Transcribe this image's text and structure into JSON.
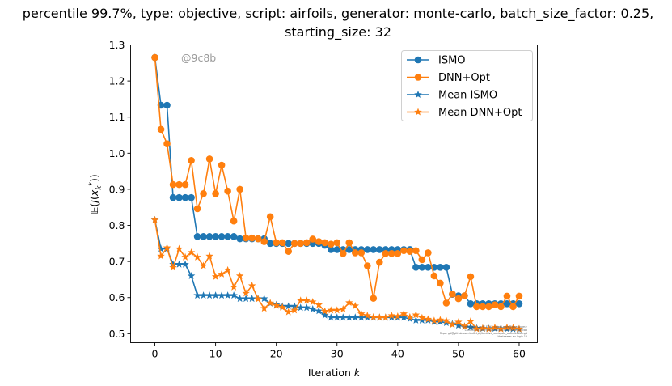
{
  "chart_data": {
    "type": "line",
    "title_line1": "percentile 99.7%, type: objective, script: airfoils, generator: monte-carlo, batch_size_factor: 0.25,",
    "title_line2": "starting_size: 32",
    "xlabel_text": "Iteration ",
    "xlabel_var": "k",
    "ylabel": "𝔼(J(x_k*))",
    "watermark": "@9c8b",
    "footnote_lines": [
      "By Kjetil Olsen Lye @ ETHZ <kjetil.o.lye@gmail.com>",
      "Commit: 0c8a8f94d4e1a2b3c5f1e0d3f1c8b9c8b",
      "Repo: git@github.com:kjetil-lye/iterative_surrogate_optimization.git",
      "Hostname: eu-login-15"
    ],
    "xlim": [
      -4,
      63
    ],
    "ylim": [
      0.475,
      1.3
    ],
    "xticks": [
      0,
      10,
      20,
      30,
      40,
      50,
      60
    ],
    "yticks": [
      0.5,
      0.6,
      0.7,
      0.8,
      0.9,
      1.0,
      1.1,
      1.2,
      1.3
    ],
    "ytick_labels": [
      "0.5",
      "0.6",
      "0.7",
      "0.8",
      "0.9",
      "1.0",
      "1.1",
      "1.2",
      "1.3"
    ],
    "grid": false,
    "legend_position": "top-right",
    "x": [
      0,
      1,
      2,
      3,
      4,
      5,
      6,
      7,
      8,
      9,
      10,
      11,
      12,
      13,
      14,
      15,
      16,
      17,
      18,
      19,
      20,
      21,
      22,
      23,
      24,
      25,
      26,
      27,
      28,
      29,
      30,
      31,
      32,
      33,
      34,
      35,
      36,
      37,
      38,
      39,
      40,
      41,
      42,
      43,
      44,
      45,
      46,
      47,
      48,
      49,
      50,
      51,
      52,
      53,
      54,
      55,
      56,
      57,
      58,
      59,
      60
    ],
    "series": [
      {
        "name": "ISMO",
        "color": "#1f77b4",
        "marker": "circle",
        "values": [
          1.265,
          1.133,
          1.133,
          0.877,
          0.877,
          0.877,
          0.877,
          0.769,
          0.769,
          0.769,
          0.769,
          0.769,
          0.769,
          0.769,
          0.763,
          0.763,
          0.763,
          0.763,
          0.763,
          0.75,
          0.75,
          0.75,
          0.75,
          0.75,
          0.75,
          0.75,
          0.75,
          0.75,
          0.745,
          0.733,
          0.733,
          0.733,
          0.733,
          0.733,
          0.733,
          0.733,
          0.733,
          0.733,
          0.733,
          0.733,
          0.733,
          0.733,
          0.733,
          0.684,
          0.684,
          0.684,
          0.684,
          0.684,
          0.684,
          0.609,
          0.605,
          0.605,
          0.583,
          0.583,
          0.583,
          0.583,
          0.583,
          0.583,
          0.583,
          0.583,
          0.583
        ]
      },
      {
        "name": "DNN+Opt",
        "color": "#ff7f0e",
        "marker": "circle",
        "values": [
          1.265,
          1.066,
          1.026,
          0.913,
          0.913,
          0.913,
          0.98,
          0.846,
          0.888,
          0.984,
          0.888,
          0.967,
          0.895,
          0.812,
          0.9,
          0.765,
          0.765,
          0.763,
          0.755,
          0.824,
          0.752,
          0.752,
          0.728,
          0.75,
          0.75,
          0.752,
          0.762,
          0.755,
          0.752,
          0.748,
          0.752,
          0.722,
          0.752,
          0.724,
          0.724,
          0.688,
          0.598,
          0.698,
          0.722,
          0.722,
          0.722,
          0.73,
          0.728,
          0.73,
          0.705,
          0.724,
          0.66,
          0.64,
          0.585,
          0.61,
          0.597,
          0.605,
          0.658,
          0.575,
          0.575,
          0.575,
          0.58,
          0.575,
          0.604,
          0.575,
          0.604
        ]
      },
      {
        "name": "Mean ISMO",
        "color": "#1f77b4",
        "marker": "star",
        "values": [
          0.815,
          0.735,
          0.735,
          0.692,
          0.692,
          0.692,
          0.66,
          0.606,
          0.606,
          0.606,
          0.606,
          0.606,
          0.606,
          0.606,
          0.597,
          0.597,
          0.597,
          0.597,
          0.597,
          0.584,
          0.58,
          0.576,
          0.576,
          0.576,
          0.572,
          0.572,
          0.568,
          0.563,
          0.551,
          0.545,
          0.545,
          0.545,
          0.545,
          0.545,
          0.545,
          0.545,
          0.545,
          0.545,
          0.545,
          0.545,
          0.545,
          0.545,
          0.541,
          0.537,
          0.537,
          0.537,
          0.533,
          0.533,
          0.53,
          0.527,
          0.523,
          0.52,
          0.518,
          0.515,
          0.514,
          0.514,
          0.514,
          0.514,
          0.513,
          0.513,
          0.512
        ]
      },
      {
        "name": "Mean DNN+Opt",
        "color": "#ff7f0e",
        "marker": "star",
        "values": [
          0.815,
          0.715,
          0.738,
          0.683,
          0.735,
          0.712,
          0.725,
          0.712,
          0.688,
          0.715,
          0.658,
          0.665,
          0.676,
          0.629,
          0.66,
          0.612,
          0.633,
          0.596,
          0.57,
          0.585,
          0.578,
          0.573,
          0.56,
          0.565,
          0.592,
          0.592,
          0.588,
          0.58,
          0.562,
          0.565,
          0.565,
          0.568,
          0.586,
          0.577,
          0.555,
          0.55,
          0.546,
          0.545,
          0.545,
          0.55,
          0.548,
          0.555,
          0.546,
          0.552,
          0.544,
          0.54,
          0.536,
          0.538,
          0.536,
          0.525,
          0.532,
          0.52,
          0.534,
          0.513,
          0.515,
          0.513,
          0.517,
          0.513,
          0.517,
          0.516,
          0.513
        ]
      }
    ]
  }
}
